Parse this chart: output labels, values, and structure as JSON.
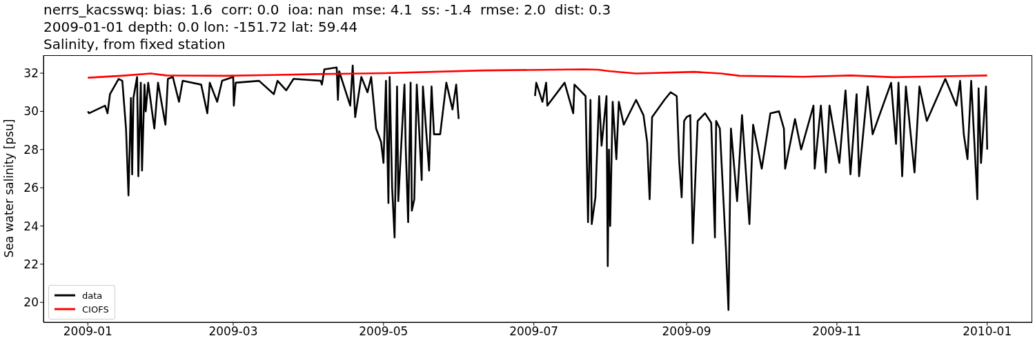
{
  "chart_data": {
    "type": "line",
    "title": "nerrs_kacsswq: bias: 1.6  corr: 0.0  ioa: nan  mse: 4.1  ss: -1.4  rmse: 2.0  dist: 0.3",
    "subtitle": "2009-01-01 depth: 0.0 lon: -151.72 lat: 59.44\nSalinity, from fixed station",
    "ylabel": "Sea water salinity [psu]",
    "xlim": [
      "2008-12-14",
      "2010-01-19"
    ],
    "xticks": [
      "2009-01",
      "2009-03",
      "2009-05",
      "2009-07",
      "2009-09",
      "2009-11",
      "2010-01"
    ],
    "ylim": [
      18.96,
      32.94
    ],
    "yticks": [
      20,
      22,
      24,
      26,
      28,
      30,
      32
    ],
    "legend": "bottom left",
    "marker": "none",
    "line_style": "solid",
    "series": [
      {
        "name": "data",
        "color": "#000000",
        "x": [
          "2009-01-01T00:00",
          "2009-01-01T12:00",
          "2009-01-08",
          "2009-01-09",
          "2009-01-10",
          "2009-01-13T12:00",
          "2009-01-15",
          "2009-01-16T12:00",
          "2009-01-17T12:00",
          "2009-01-18T12:00",
          "2009-01-19T00:00",
          "2009-01-19T12:00",
          "2009-01-21",
          "2009-01-21T12:00",
          "2009-01-22T12:00",
          "2009-01-23",
          "2009-01-24",
          "2009-01-24T12:00",
          "2009-01-25T12:00",
          "2009-01-28",
          "2009-01-29T12:00",
          "2009-02-01T12:00",
          "2009-02-02T12:00",
          "2009-02-04T12:00",
          "2009-02-07",
          "2009-02-08T12:00",
          "2009-02-16",
          "2009-02-18T12:00",
          "2009-02-19T12:00",
          "2009-02-22T12:00",
          "2009-02-24T12:00",
          "2009-03-01T00:00",
          "2009-03-01T06:00",
          "2009-03-02",
          "2009-03-11T12:00",
          "2009-03-17T12:00",
          "2009-03-19",
          "2009-03-22T12:00",
          "2009-03-25T12:00",
          "2009-04-05T12:00",
          "2009-04-06",
          "2009-04-07",
          "2009-04-12",
          "2009-04-12T12:00",
          "2009-04-13",
          "2009-04-17T12:00",
          "2009-04-18T12:00",
          "2009-04-19T12:00",
          "2009-04-22",
          "2009-04-24T12:00",
          "2009-04-26",
          "2009-04-28",
          "2009-04-30",
          "2009-05-01",
          "2009-05-02",
          "2009-05-03T00:00",
          "2009-05-03T12:00",
          "2009-05-04T12:00",
          "2009-05-05T12:00",
          "2009-05-06T12:00",
          "2009-05-07",
          "2009-05-09T12:00",
          "2009-05-10",
          "2009-05-11",
          "2009-05-12",
          "2009-05-12T12:00",
          "2009-05-13T12:00",
          "2009-05-14T12:00",
          "2009-05-16T12:00",
          "2009-05-17",
          "2009-05-19T12:00",
          "2009-05-20T12:00",
          "2009-05-21T12:00",
          "2009-05-24",
          "2009-05-26T12:00",
          "2009-05-29",
          "2009-05-30T12:00",
          "2009-05-31T12:00",
          "2009-06-15",
          "2009-07-01T12:00",
          "2009-07-02",
          "2009-07-04T12:00",
          "2009-07-06",
          "2009-07-06T12:00",
          "2009-07-13T12:00",
          "2009-07-17",
          "2009-07-17T12:00",
          "2009-07-22",
          "2009-07-23",
          "2009-07-24",
          "2009-07-24T12:00",
          "2009-07-26",
          "2009-07-27T12:00",
          "2009-07-28T12:00",
          "2009-07-30T12:00",
          "2009-07-31T00:00",
          "2009-07-31T12:00",
          "2009-08-01",
          "2009-08-02",
          "2009-08-03T12:00",
          "2009-08-04T12:00",
          "2009-08-06T12:00",
          "2009-08-11T12:00",
          "2009-08-14T12:00",
          "2009-08-16",
          "2009-08-17",
          "2009-08-18",
          "2009-08-23",
          "2009-08-25T12:00",
          "2009-08-28",
          "2009-08-29",
          "2009-08-30",
          "2009-08-31",
          "2009-09-01",
          "2009-09-02T12:00",
          "2009-09-03T12:00",
          "2009-09-05T12:00",
          "2009-09-08T12:00",
          "2009-09-11",
          "2009-09-12T12:00",
          "2009-09-13",
          "2009-09-14T12:00",
          "2009-09-17",
          "2009-09-18",
          "2009-09-19",
          "2009-09-21T12:00",
          "2009-09-23T12:00",
          "2009-09-26T12:00",
          "2009-09-28",
          "2009-10-01T12:00",
          "2009-10-05",
          "2009-10-08T12:00",
          "2009-10-10T12:00",
          "2009-10-11",
          "2009-10-15",
          "2009-10-17T12:00",
          "2009-10-22T12:00",
          "2009-10-23",
          "2009-10-25T12:00",
          "2009-10-27T12:00",
          "2009-10-29",
          "2009-11-02",
          "2009-11-04T12:00",
          "2009-11-06T12:00",
          "2009-11-09",
          "2009-11-10",
          "2009-11-13T12:00",
          "2009-11-15T12:00",
          "2009-11-23",
          "2009-11-25",
          "2009-11-26",
          "2009-11-27T12:00",
          "2009-11-29",
          "2009-12-02T12:00",
          "2009-12-04T12:00",
          "2009-12-07T12:00",
          "2009-12-15",
          "2009-12-19T12:00",
          "2009-12-21",
          "2009-12-22T12:00",
          "2009-12-24",
          "2009-12-25T12:00",
          "2009-12-28T00:00",
          "2009-12-28T12:00",
          "2009-12-29T12:00",
          "2009-12-31T12:00",
          "2010-01-01T00:00"
        ],
        "values": [
          30.0,
          29.9,
          30.3,
          29.9,
          30.9,
          31.7,
          31.6,
          29.1,
          25.6,
          30.7,
          26.7,
          30.7,
          31.8,
          26.6,
          31.5,
          26.9,
          31.4,
          30.0,
          31.5,
          29.1,
          31.5,
          29.3,
          31.7,
          31.8,
          30.5,
          31.6,
          31.4,
          29.9,
          31.5,
          30.5,
          31.6,
          31.8,
          30.3,
          31.5,
          31.6,
          30.9,
          31.6,
          31.1,
          31.7,
          31.6,
          31.4,
          32.2,
          32.3,
          30.6,
          32.1,
          30.3,
          32.4,
          29.7,
          31.8,
          31.0,
          31.8,
          29.1,
          28.4,
          27.3,
          31.6,
          25.2,
          31.8,
          26.0,
          23.4,
          31.3,
          25.3,
          31.4,
          28.2,
          24.2,
          31.5,
          24.8,
          25.4,
          31.4,
          26.4,
          31.3,
          26.9,
          31.3,
          28.8,
          28.8,
          31.5,
          30.1,
          31.4,
          29.6,
          null,
          30.8,
          31.5,
          30.5,
          31.5,
          30.3,
          31.5,
          29.9,
          31.4,
          30.8,
          24.2,
          30.6,
          24.1,
          25.5,
          30.8,
          28.2,
          30.8,
          21.9,
          28.0,
          24.0,
          30.5,
          27.5,
          30.5,
          29.3,
          30.6,
          29.8,
          28.4,
          25.4,
          29.7,
          30.6,
          31.0,
          30.8,
          27.4,
          25.5,
          29.5,
          29.7,
          29.8,
          23.1,
          29.5,
          29.9,
          29.4,
          23.4,
          29.5,
          29.1,
          22.7,
          19.6,
          29.1,
          25.3,
          29.8,
          24.1,
          29.3,
          27.0,
          29.9,
          30.0,
          29.1,
          27.0,
          29.6,
          28.0,
          30.3,
          27.0,
          30.3,
          26.8,
          30.3,
          27.3,
          31.1,
          26.7,
          30.9,
          26.6,
          31.3,
          28.8,
          31.5,
          28.3,
          31.5,
          26.6,
          31.3,
          26.8,
          31.3,
          29.5,
          31.7,
          30.3,
          31.6,
          28.8,
          27.5,
          31.6,
          25.4,
          31.2,
          27.3,
          31.3,
          28.0
        ]
      },
      {
        "name": "CIOFS",
        "color": "#ff0000",
        "x": [
          "2009-01-01",
          "2009-01-14T12:00",
          "2009-01-26T12:00",
          "2009-02-02",
          "2009-02-25T12:00",
          "2009-03-16",
          "2009-04-04",
          "2009-05-02",
          "2009-06-10",
          "2009-07-21",
          "2009-07-27",
          "2009-08-01",
          "2009-08-11T12:00",
          "2009-09-02",
          "2009-09-04",
          "2009-09-15",
          "2009-09-22T12:00",
          "2009-10-18T12:00",
          "2009-11-06T12:00",
          "2009-11-24",
          "2009-12-08",
          "2010-01-01"
        ],
        "values": [
          31.76,
          31.86,
          31.98,
          31.88,
          31.86,
          31.9,
          31.95,
          32.0,
          32.14,
          32.2,
          32.18,
          32.1,
          31.98,
          32.06,
          32.07,
          31.98,
          31.86,
          31.81,
          31.88,
          31.79,
          31.82,
          31.88
        ]
      }
    ]
  }
}
